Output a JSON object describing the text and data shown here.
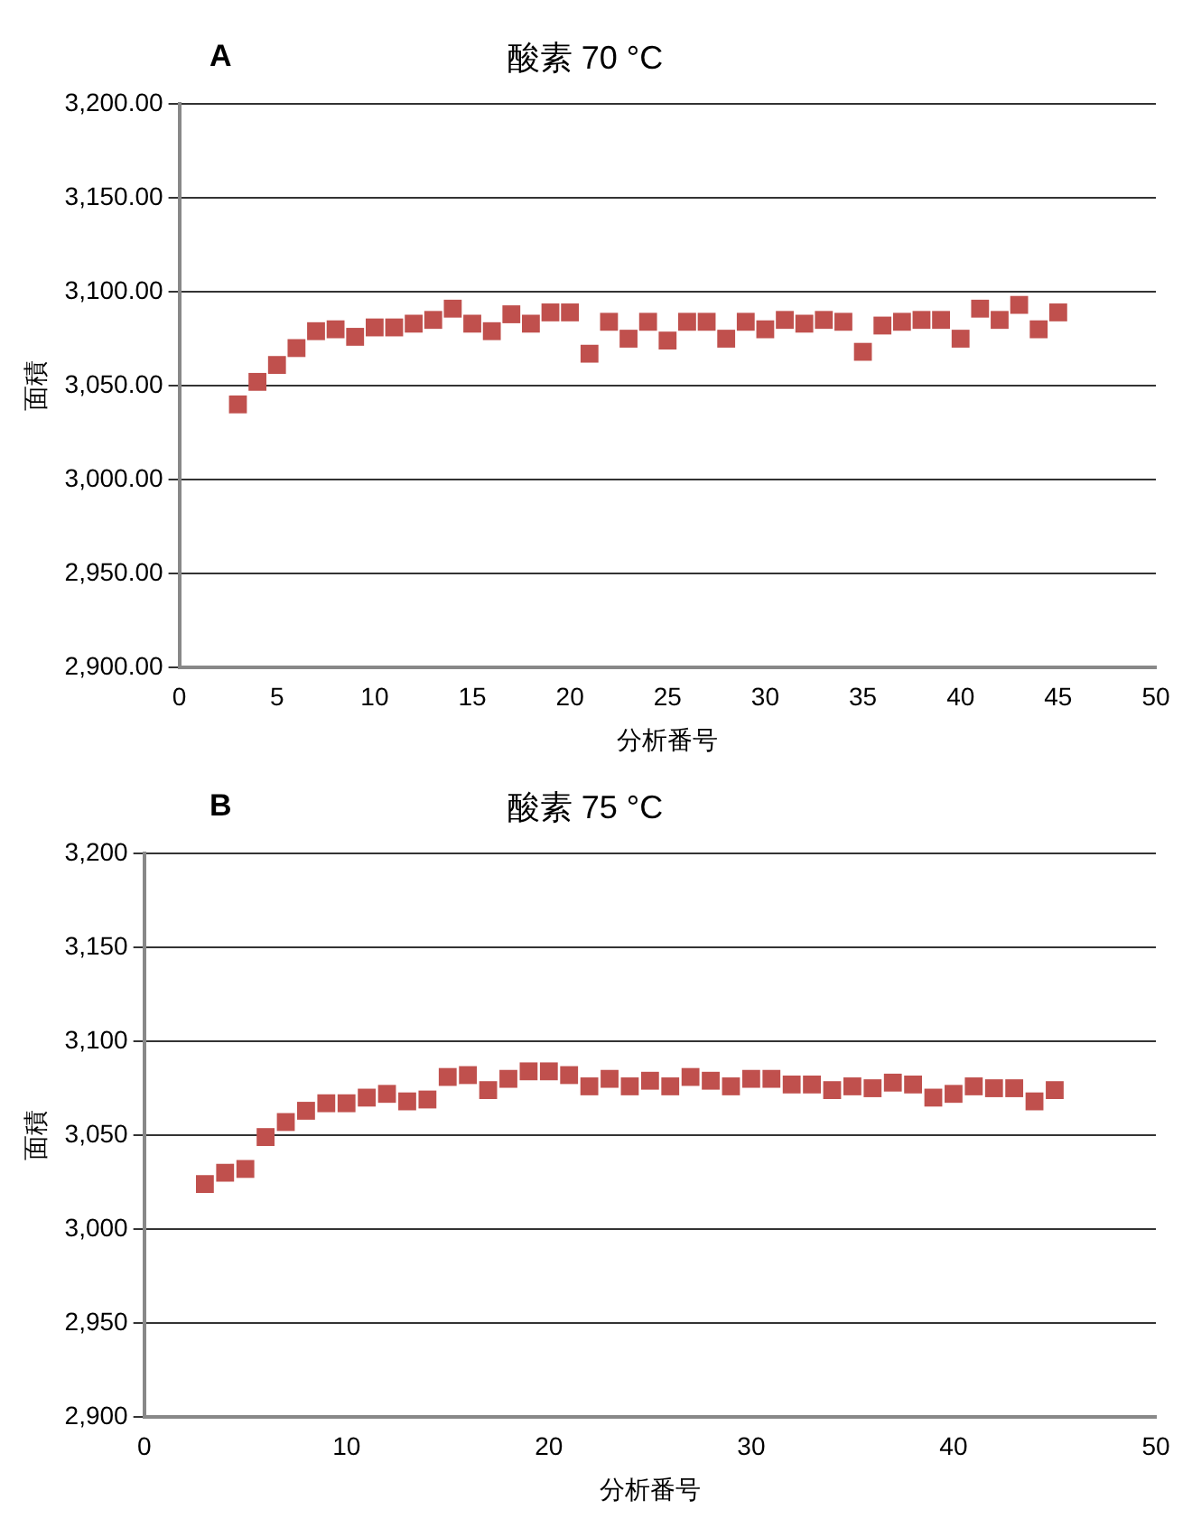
{
  "chart_data": [
    {
      "type": "scatter",
      "title": "酸素 70 °C",
      "annotations": [
        "A"
      ],
      "xlabel": "分析番号",
      "ylabel": "面積",
      "marker": "square",
      "grid": "y",
      "legend": false,
      "x": [
        3,
        4,
        5,
        6,
        7,
        8,
        9,
        10,
        11,
        12,
        13,
        14,
        15,
        16,
        17,
        18,
        19,
        20,
        21,
        22,
        23,
        24,
        25,
        26,
        27,
        28,
        29,
        30,
        31,
        32,
        33,
        34,
        35,
        36,
        37,
        38,
        39,
        40,
        41,
        42,
        43,
        44,
        45
      ],
      "series": [
        {
          "color": "#c0504d",
          "values": [
            3040,
            3052,
            3061,
            3070,
            3079,
            3080,
            3076,
            3081,
            3081,
            3083,
            3085,
            3091,
            3083,
            3079,
            3088,
            3083,
            3089,
            3089,
            3067,
            3084,
            3075,
            3084,
            3074,
            3084,
            3084,
            3075,
            3084,
            3080,
            3085,
            3083,
            3085,
            3084,
            3068,
            3082,
            3084,
            3085,
            3085,
            3075,
            3091,
            3085,
            3093,
            3080,
            3089
          ]
        }
      ],
      "xlim": [
        0,
        50
      ],
      "xticks": [
        0,
        5,
        10,
        15,
        20,
        25,
        30,
        35,
        40,
        45,
        50
      ],
      "ylim": [
        2900,
        3200
      ],
      "yticks": [
        {
          "value": 2900,
          "label": "2,900.00"
        },
        {
          "value": 2950,
          "label": "2,950.00"
        },
        {
          "value": 3000,
          "label": "3,000.00"
        },
        {
          "value": 3050,
          "label": "3,050.00"
        },
        {
          "value": 3100,
          "label": "3,100.00"
        },
        {
          "value": 3150,
          "label": "3,150.00"
        },
        {
          "value": 3200,
          "label": "3,200.00"
        }
      ]
    },
    {
      "type": "scatter",
      "title": "酸素 75 °C",
      "annotations": [
        "B"
      ],
      "xlabel": "分析番号",
      "ylabel": "面積",
      "marker": "square",
      "grid": "y",
      "legend": false,
      "x": [
        3,
        4,
        5,
        6,
        7,
        8,
        9,
        10,
        11,
        12,
        13,
        14,
        15,
        16,
        17,
        18,
        19,
        20,
        21,
        22,
        23,
        24,
        25,
        26,
        27,
        28,
        29,
        30,
        31,
        32,
        33,
        34,
        35,
        36,
        37,
        38,
        39,
        40,
        41,
        42,
        43,
        44,
        45
      ],
      "series": [
        {
          "color": "#c0504d",
          "values": [
            3024,
            3030,
            3032,
            3049,
            3057,
            3063,
            3067,
            3067,
            3070,
            3072,
            3068,
            3069,
            3081,
            3082,
            3074,
            3080,
            3084,
            3084,
            3082,
            3076,
            3080,
            3076,
            3079,
            3076,
            3081,
            3079,
            3076,
            3080,
            3080,
            3077,
            3077,
            3074,
            3076,
            3075,
            3078,
            3077,
            3070,
            3072,
            3076,
            3075,
            3075,
            3068,
            3074
          ]
        }
      ],
      "xlim": [
        0,
        50
      ],
      "xticks": [
        0,
        10,
        20,
        30,
        40,
        50
      ],
      "ylim": [
        2900,
        3200
      ],
      "yticks": [
        {
          "value": 2900,
          "label": "2,900"
        },
        {
          "value": 2950,
          "label": "2,950"
        },
        {
          "value": 3000,
          "label": "3,000"
        },
        {
          "value": 3050,
          "label": "3,050"
        },
        {
          "value": 3100,
          "label": "3,100"
        },
        {
          "value": 3150,
          "label": "3,150"
        },
        {
          "value": 3200,
          "label": "3,200"
        }
      ]
    }
  ]
}
